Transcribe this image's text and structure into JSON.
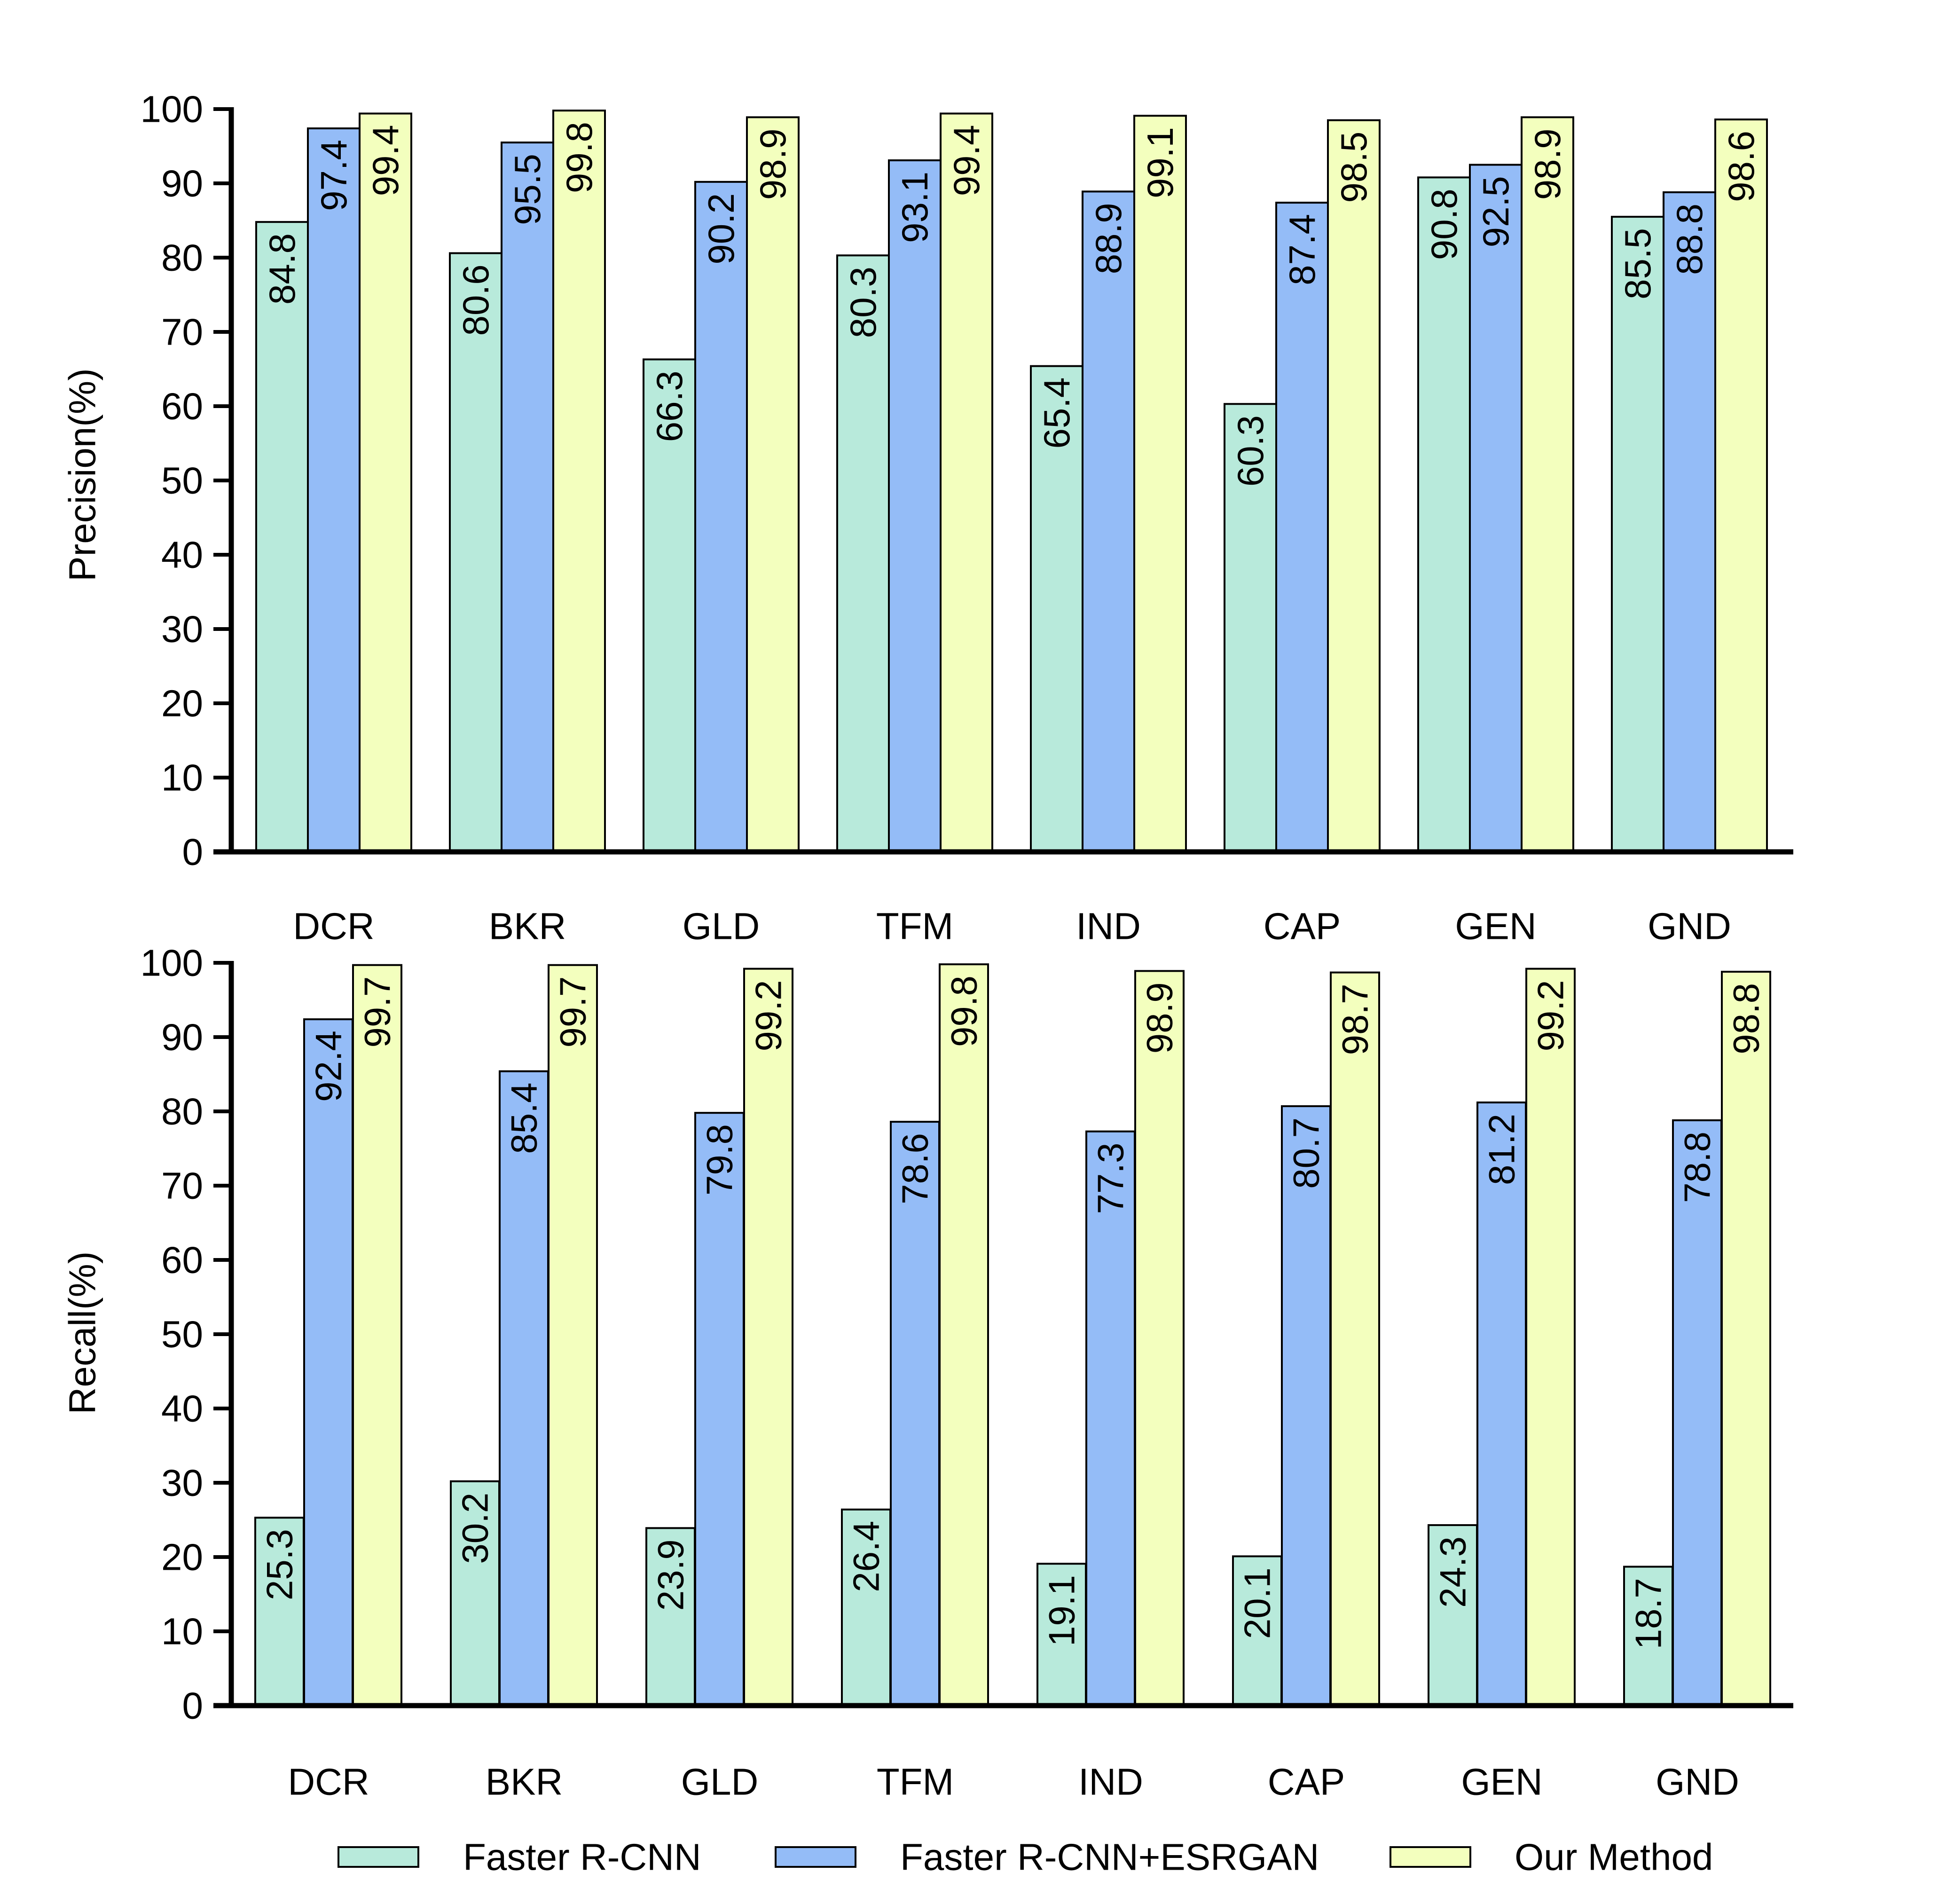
{
  "colors": {
    "faster_rcnn": "#b8eadb",
    "faster_rcnn_esrgan": "#94bcf7",
    "our_method": "#f3ffbe",
    "axis": "#000000"
  },
  "legend": {
    "items": [
      {
        "name": "Faster R-CNN",
        "color_key": "faster_rcnn"
      },
      {
        "name": "Faster R-CNN+ESRGAN",
        "color_key": "faster_rcnn_esrgan"
      },
      {
        "name": "Our Method",
        "color_key": "our_method"
      }
    ]
  },
  "chart_data": [
    {
      "type": "bar",
      "title": "",
      "xlabel": "",
      "ylabel": "Precision(%)",
      "ylim": [
        0,
        100
      ],
      "yticks": [
        0,
        10,
        20,
        30,
        40,
        50,
        60,
        70,
        80,
        90,
        100
      ],
      "grid": false,
      "categories": [
        "DCR",
        "BKR",
        "GLD",
        "TFM",
        "IND",
        "CAP",
        "GEN",
        "GND"
      ],
      "series": [
        {
          "name": "Faster R-CNN",
          "values": [
            84.8,
            80.6,
            66.3,
            80.3,
            65.4,
            60.3,
            90.8,
            85.5
          ]
        },
        {
          "name": "Faster R-CNN+ESRGAN",
          "values": [
            97.4,
            95.5,
            90.2,
            93.1,
            88.9,
            87.4,
            92.5,
            88.8
          ]
        },
        {
          "name": "Our Method",
          "values": [
            99.4,
            99.8,
            98.9,
            99.4,
            99.1,
            98.5,
            98.9,
            98.6
          ]
        }
      ],
      "data_labels": "rotated-inside-top"
    },
    {
      "type": "bar",
      "title": "",
      "xlabel": "",
      "ylabel": "Recall(%)",
      "ylim": [
        0,
        100
      ],
      "yticks": [
        0,
        10,
        20,
        30,
        40,
        50,
        60,
        70,
        80,
        90,
        100
      ],
      "grid": false,
      "categories": [
        "DCR",
        "BKR",
        "GLD",
        "TFM",
        "IND",
        "CAP",
        "GEN",
        "GND"
      ],
      "series": [
        {
          "name": "Faster R-CNN",
          "values": [
            25.3,
            30.2,
            23.9,
            26.4,
            19.1,
            20.1,
            24.3,
            18.7
          ]
        },
        {
          "name": "Faster R-CNN+ESRGAN",
          "values": [
            92.4,
            85.4,
            79.8,
            78.6,
            77.3,
            80.7,
            81.2,
            78.8
          ]
        },
        {
          "name": "Our Method",
          "values": [
            99.7,
            99.7,
            99.2,
            99.8,
            98.9,
            98.7,
            99.2,
            98.8
          ]
        }
      ],
      "data_labels": "rotated-inside-top"
    }
  ]
}
